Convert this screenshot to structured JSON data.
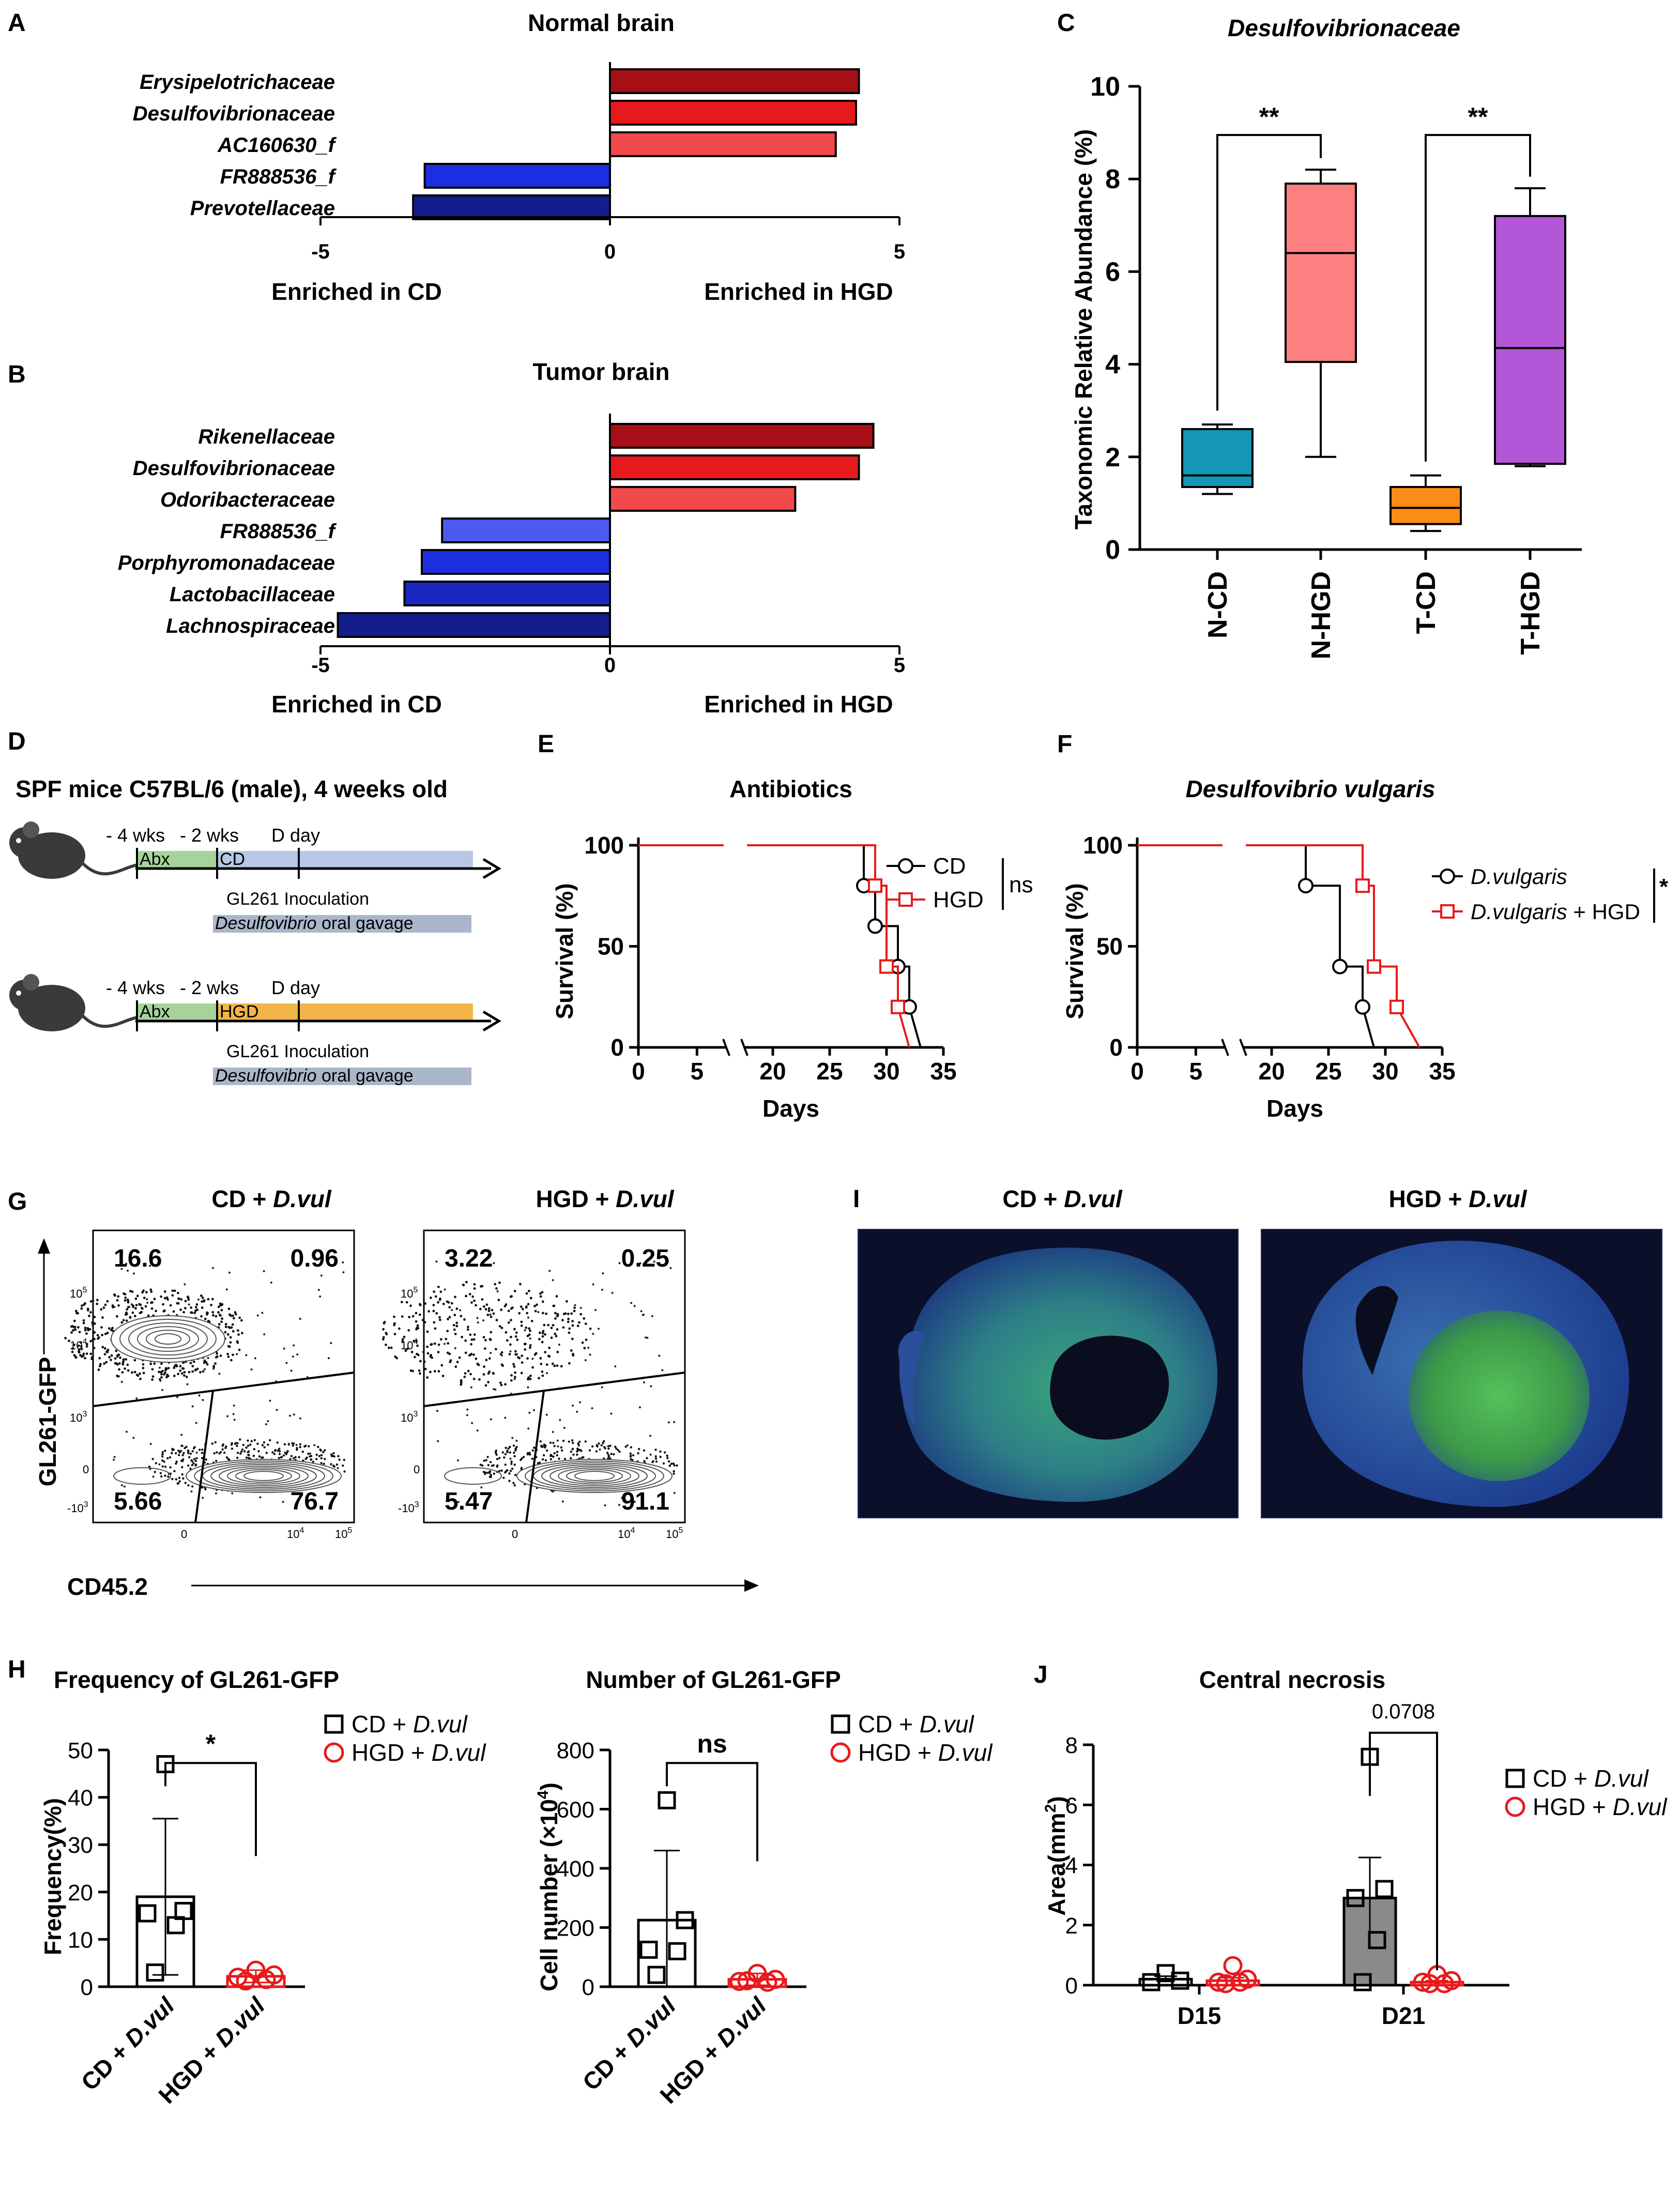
{
  "panels": {
    "A": {
      "letter": "A",
      "title": "Normal brain",
      "xlabel_left": "Enriched in CD",
      "xlabel_right": "Enriched in HGD",
      "ticks": [
        "-5",
        "0",
        "5"
      ]
    },
    "B": {
      "letter": "B",
      "title": "Tumor brain",
      "xlabel_left": "Enriched in CD",
      "xlabel_right": "Enriched in HGD",
      "ticks": [
        "-5",
        "0",
        "5"
      ]
    },
    "C": {
      "letter": "C",
      "title": "Desulfovibrionaceae",
      "ylabel": "Taxonomic Relative Abundance (%)",
      "yticks": [
        "0",
        "2",
        "4",
        "6",
        "8",
        "10"
      ],
      "sig": [
        "**",
        "**"
      ]
    },
    "D": {
      "letter": "D",
      "title": "SPF mice C57BL/6 (male), 4 weeks old",
      "rows": [
        {
          "w4": "- 4 wks",
          "w2": "- 2 wks",
          "dday": "D day",
          "abx": "Abx",
          "diet": "CD",
          "inoc": "GL261 Inoculation",
          "gavage": "Desulfovibrio",
          "gavage_rest": "oral gavage"
        },
        {
          "w4": "- 4 wks",
          "w2": "- 2 wks",
          "dday": "D day",
          "abx": "Abx",
          "diet": "HGD",
          "inoc": "GL261 Inoculation",
          "gavage": "Desulfovibrio",
          "gavage_rest": "oral gavage"
        }
      ]
    },
    "E": {
      "letter": "E",
      "title": "Antibiotics",
      "ylabel": "Survival (%)",
      "xlabel": "Days",
      "yticks": [
        "0",
        "50",
        "100"
      ],
      "xticks": [
        "0",
        "5",
        "20",
        "25",
        "30",
        "35"
      ],
      "legend": [
        "CD",
        "HGD"
      ],
      "sig": "ns"
    },
    "F": {
      "letter": "F",
      "title": "Desulfovibrio vulgaris",
      "ylabel": "Survival (%)",
      "xlabel": "Days",
      "yticks": [
        "0",
        "50",
        "100"
      ],
      "xticks": [
        "0",
        "5",
        "20",
        "25",
        "30",
        "35"
      ],
      "legend": [
        "D.vulgaris",
        "D.vulgaris + HGD"
      ],
      "legend_plain": " + HGD",
      "sig": "*"
    },
    "G": {
      "letter": "G",
      "titles": [
        {
          "a": "CD + ",
          "b": "D.vul"
        },
        {
          "a": "HGD + ",
          "b": "D.vul"
        }
      ],
      "ylabel": "GL261-GFP",
      "xlabel": "CD45.2",
      "quadrants": [
        {
          "ul": "16.6",
          "ur": "0.96",
          "ll": "5.66",
          "lr": "76.7"
        },
        {
          "ul": "3.22",
          "ur": "0.25",
          "ll": "5.47",
          "lr": "91.1"
        }
      ],
      "axis_ticks": [
        "10",
        "5",
        "10",
        "4",
        "10",
        "3",
        "0",
        "-10",
        "3",
        "0",
        "10",
        "4",
        "10",
        "5"
      ]
    },
    "I": {
      "letter": "I",
      "titles": [
        {
          "a": "CD + ",
          "b": "D.vul"
        },
        {
          "a": "HGD + ",
          "b": "D.vul"
        }
      ]
    },
    "H": {
      "letter": "H",
      "freq": {
        "title": "Frequency of GL261-GFP",
        "ylabel": "Frequency(%)",
        "yticks": [
          "0",
          "10",
          "20",
          "30",
          "40",
          "50"
        ],
        "sig": "*"
      },
      "num": {
        "title": "Number of GL261-GFP",
        "ylabel": "Cell number (×10",
        "ylabel_sup": "4",
        "ylabel_end": ")",
        "yticks": [
          "0",
          "200",
          "400",
          "600",
          "800"
        ],
        "sig": "ns"
      },
      "groups": [
        {
          "a": "CD + ",
          "b": "D.vul"
        },
        {
          "a": "HGD + ",
          "b": "D.vul"
        }
      ],
      "legend": [
        {
          "a": "CD + ",
          "b": "D.vul"
        },
        {
          "a": "HGD + ",
          "b": "D.vul"
        }
      ]
    },
    "J": {
      "letter": "J",
      "title": "Central necrosis",
      "ylabel": "Area(mm",
      "ylabel_sup": "2",
      "ylabel_end": ")",
      "yticks": [
        "0",
        "2",
        "4",
        "6",
        "8"
      ],
      "xticks": [
        "D15",
        "D21"
      ],
      "pvalue": "0.0708",
      "legend": [
        {
          "a": "CD + ",
          "b": "D.vul"
        },
        {
          "a": "HGD + ",
          "b": "D.vul"
        }
      ]
    }
  },
  "colors": {
    "dark_red": "#a50f15",
    "red": "#e8191c",
    "light_red": "#f2494b",
    "light_blue": "#4b5bf0",
    "blue": "#1d2ee0",
    "mid_blue": "#1a28c0",
    "navy": "#131e8c",
    "teal": "#1497b5",
    "salmon": "#fc8080",
    "orange": "#fb8c15",
    "purple": "#b456d8",
    "survival_cd": "#000000",
    "survival_hgd": "#e8191c",
    "diet_cd": "#b7c7e6",
    "diet_hgd": "#f1b54a",
    "abx": "#a6d39a",
    "gavage_bar": "#aab6c9"
  },
  "chart_data": [
    {
      "panel": "A",
      "type": "bar",
      "orientation": "horizontal",
      "categories": [
        "Erysipelotrichaceae",
        "Desulfovibrionaceae",
        "AC160630_f",
        "FR888536_f",
        "Prevotellaceae"
      ],
      "values": [
        4.3,
        4.25,
        3.9,
        -3.2,
        -3.4
      ],
      "bar_colors": [
        "#a50f15",
        "#e8191c",
        "#f2494b",
        "#1d2ee0",
        "#131e8c"
      ],
      "xlim": [
        -5,
        5
      ],
      "xticks": [
        -5,
        0,
        5
      ]
    },
    {
      "panel": "B",
      "type": "bar",
      "orientation": "horizontal",
      "categories": [
        "Rikenellaceae",
        "Desulfovibrionaceae",
        "Odoribacteraceae",
        "FR888536_f",
        "Porphyromonadaceae",
        "Lactobacillaceae",
        "Lachnospiraceae"
      ],
      "values": [
        4.55,
        4.3,
        3.2,
        -2.9,
        -3.25,
        -3.55,
        -4.7
      ],
      "bar_colors": [
        "#a50f15",
        "#e8191c",
        "#f2494b",
        "#4b5bf0",
        "#1d2ee0",
        "#1a28c0",
        "#131e8c"
      ],
      "xlim": [
        -5,
        5
      ],
      "xticks": [
        -5,
        0,
        5
      ]
    },
    {
      "panel": "C",
      "type": "box",
      "categories": [
        "N-CD",
        "N-HGD",
        "T-CD",
        "T-HGD"
      ],
      "boxes": [
        {
          "min": 1.2,
          "q1": 1.35,
          "median": 1.6,
          "q3": 2.6,
          "max": 2.7,
          "color": "#1497b5"
        },
        {
          "min": 2.0,
          "q1": 4.05,
          "median": 6.4,
          "q3": 7.9,
          "max": 8.2,
          "color": "#fc8080"
        },
        {
          "min": 0.4,
          "q1": 0.55,
          "median": 0.9,
          "q3": 1.35,
          "max": 1.6,
          "color": "#fb8c15"
        },
        {
          "min": 1.8,
          "q1": 1.85,
          "median": 4.35,
          "q3": 7.2,
          "max": 7.8,
          "color": "#b456d8"
        }
      ],
      "ylim": [
        0,
        10
      ]
    },
    {
      "panel": "E",
      "type": "line",
      "subtype": "kaplan-meier",
      "series": [
        {
          "name": "CD",
          "color": "#000000",
          "marker": "circle",
          "x": [
            0,
            28,
            28,
            29,
            29,
            31,
            31,
            32,
            32,
            33
          ],
          "y": [
            100,
            100,
            80,
            80,
            60,
            60,
            40,
            40,
            20,
            0
          ]
        },
        {
          "name": "HGD",
          "color": "#e8191c",
          "marker": "square",
          "x": [
            0,
            29,
            29,
            30,
            30,
            31,
            31,
            32
          ],
          "y": [
            100,
            100,
            80,
            80,
            40,
            40,
            20,
            0
          ]
        }
      ],
      "xlim": [
        0,
        35
      ],
      "ylim": [
        0,
        100
      ]
    },
    {
      "panel": "F",
      "type": "line",
      "subtype": "kaplan-meier",
      "series": [
        {
          "name": "D.vulgaris",
          "color": "#000000",
          "marker": "circle",
          "x": [
            0,
            23,
            23,
            26,
            26,
            28,
            28,
            29
          ],
          "y": [
            100,
            100,
            80,
            80,
            40,
            40,
            20,
            0
          ]
        },
        {
          "name": "D.vulgaris + HGD",
          "color": "#e8191c",
          "marker": "square",
          "x": [
            0,
            28,
            28,
            29,
            29,
            31,
            31,
            33
          ],
          "y": [
            100,
            100,
            80,
            80,
            40,
            40,
            20,
            0
          ]
        }
      ],
      "xlim": [
        0,
        35
      ],
      "ylim": [
        0,
        100
      ]
    },
    {
      "panel": "H-frequency",
      "type": "bar",
      "categories": [
        "CD + D.vul",
        "HGD + D.vul"
      ],
      "values": [
        19,
        2.2
      ],
      "errors": [
        16.5,
        1.3
      ],
      "points": [
        [
          47,
          16,
          15.5,
          13,
          3
        ],
        [
          3.5,
          2.5,
          2,
          1.5,
          1.2
        ]
      ],
      "ylim": [
        0,
        50
      ]
    },
    {
      "panel": "H-number",
      "type": "bar",
      "categories": [
        "CD + D.vul",
        "HGD + D.vul"
      ],
      "values": [
        225,
        25
      ],
      "errors": [
        235,
        20
      ],
      "points": [
        [
          630,
          225,
          125,
          120,
          40
        ],
        [
          45,
          25,
          18,
          15,
          20
        ]
      ],
      "ylim": [
        0,
        800
      ]
    },
    {
      "panel": "J",
      "type": "bar",
      "categories": [
        "D15",
        "D21"
      ],
      "series": [
        {
          "name": "CD + D.vul",
          "values": [
            0.2,
            2.9
          ],
          "errors": [
            0.1,
            1.35
          ],
          "points": [
            [
              0.4,
              0.15,
              0.1
            ],
            [
              7.6,
              3.2,
              2.9,
              1.5,
              0.1
            ]
          ]
        },
        {
          "name": "HGD + D.vul",
          "values": [
            0.15,
            0.1
          ],
          "errors": [
            0.1,
            0.05
          ],
          "points": [
            [
              0.65,
              0.2,
              0.1,
              0.1,
              0.05
            ],
            [
              0.35,
              0.15,
              0.1,
              0.05,
              0.05
            ]
          ]
        }
      ],
      "ylim": [
        0,
        8
      ]
    }
  ]
}
